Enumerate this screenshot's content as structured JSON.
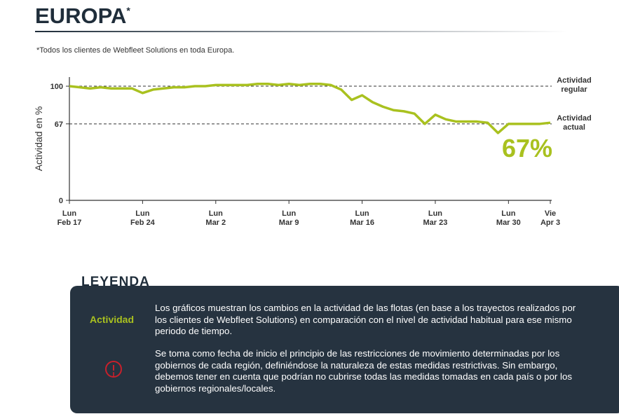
{
  "chart_data": {
    "type": "line",
    "title": "EUROPA",
    "title_marker": "*",
    "subtitle": "*Todos los clientes de Webfleet Solutions en toda Europa.",
    "y_axis_label": "Actividad en %",
    "categories": [
      "Lun\nFeb 17",
      null,
      null,
      null,
      null,
      null,
      null,
      "Lun\nFeb 24",
      null,
      null,
      null,
      null,
      null,
      null,
      "Lun\nMar 2",
      null,
      null,
      null,
      null,
      null,
      null,
      "Lun\nMar 9",
      null,
      null,
      null,
      null,
      null,
      null,
      "Lun\nMar 16",
      null,
      null,
      null,
      null,
      null,
      null,
      "Lun\nMar 23",
      null,
      null,
      null,
      null,
      null,
      null,
      "Lun\nMar 30",
      null,
      null,
      null,
      "Vie\nApr 3"
    ],
    "series": [
      {
        "name": "Actividad",
        "color": "#a9c11f",
        "values": [
          100,
          99,
          98,
          99,
          98,
          98,
          98,
          94,
          97,
          98,
          99,
          99,
          100,
          100,
          101,
          101,
          101,
          101,
          102,
          102,
          101,
          102,
          101,
          102,
          102,
          101,
          97,
          88,
          92,
          86,
          82,
          79,
          78,
          76,
          67,
          75,
          71,
          69,
          69,
          69,
          68,
          59,
          67,
          67,
          67,
          67,
          68
        ]
      }
    ],
    "ylim": [
      0,
      108
    ],
    "yticks": [
      0,
      67,
      100
    ],
    "reference_lines": [
      {
        "value": 100,
        "label": "Actividad\nregular"
      },
      {
        "value": 67,
        "label": "Actividad\nactual"
      }
    ],
    "highlight_label": "67%"
  },
  "legend_panel": {
    "heading": "LEYENDA",
    "paragraphs": [
      "Los gráficos muestran los cambios en la actividad de las flotas (en base a los trayectos realizados por los clientes de Webfleet Solutions) en comparación con el nivel de actividad habitual para ese mismo periodo de tiempo.",
      "Se toma como fecha de inicio el principio de las restricciones de movimiento determinadas por los gobiernos de cada región, definiéndose la naturaleza de estas medidas restrictivas. Sin embargo, debemos tener en cuenta que podrían no cubrirse todas las medidas tomadas en cada país o por los gobiernos regionales/locales."
    ]
  }
}
